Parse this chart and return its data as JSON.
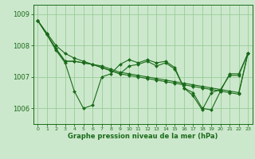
{
  "background_color": "#cce8cc",
  "grid_color": "#99cc99",
  "line_color": "#1a6b1a",
  "series": [
    {
      "x": [
        0,
        1,
        2,
        3,
        4,
        5,
        6,
        7,
        8,
        9,
        10,
        11,
        12,
        13,
        14,
        15,
        16,
        17,
        18,
        19,
        20,
        21,
        22,
        23
      ],
      "y": [
        1008.8,
        1008.35,
        1007.85,
        1007.45,
        1006.55,
        1006.0,
        1006.1,
        1007.0,
        1007.1,
        1007.4,
        1007.55,
        1007.45,
        1007.55,
        1007.45,
        1007.5,
        1007.3,
        1006.65,
        1006.5,
        1006.0,
        1005.95,
        1006.55,
        1007.1,
        1007.1,
        1007.75
      ]
    },
    {
      "x": [
        0,
        1,
        2,
        3,
        4,
        5,
        6,
        7,
        8,
        9,
        10,
        11,
        12,
        13,
        14,
        15,
        16,
        17,
        18,
        19,
        20,
        21,
        22,
        23
      ],
      "y": [
        1008.8,
        1008.4,
        1008.0,
        1007.75,
        1007.6,
        1007.5,
        1007.4,
        1007.35,
        1007.25,
        1007.15,
        1007.1,
        1007.05,
        1007.0,
        1006.95,
        1006.9,
        1006.85,
        1006.8,
        1006.75,
        1006.7,
        1006.65,
        1006.6,
        1006.55,
        1006.5,
        1007.75
      ]
    },
    {
      "x": [
        0,
        1,
        2,
        3,
        4,
        5,
        6,
        7,
        8,
        9,
        10,
        11,
        12,
        13,
        14,
        15,
        16,
        17,
        18,
        19,
        20,
        21,
        22,
        23
      ],
      "y": [
        1008.8,
        1008.35,
        1007.9,
        1007.5,
        1007.5,
        1007.45,
        1007.4,
        1007.3,
        1007.2,
        1007.1,
        1007.35,
        1007.4,
        1007.5,
        1007.35,
        1007.45,
        1007.25,
        1006.65,
        1006.4,
        1005.95,
        1006.5,
        1006.6,
        1007.05,
        1007.05,
        1007.75
      ]
    },
    {
      "x": [
        0,
        1,
        2,
        3,
        4,
        5,
        6,
        7,
        8,
        9,
        10,
        11,
        12,
        13,
        14,
        15,
        16,
        17,
        18,
        19,
        20,
        21,
        22,
        23
      ],
      "y": [
        1008.8,
        1008.35,
        1007.9,
        1007.5,
        1007.5,
        1007.45,
        1007.4,
        1007.3,
        1007.2,
        1007.1,
        1007.05,
        1007.0,
        1006.95,
        1006.9,
        1006.85,
        1006.8,
        1006.75,
        1006.7,
        1006.65,
        1006.6,
        1006.55,
        1006.5,
        1006.45,
        1007.75
      ]
    }
  ],
  "yticks": [
    1006,
    1007,
    1008,
    1009
  ],
  "xtick_labels": [
    "0",
    "1",
    "2",
    "3",
    "4",
    "5",
    "6",
    "7",
    "8",
    "9",
    "10",
    "11",
    "12",
    "13",
    "14",
    "15",
    "16",
    "17",
    "18",
    "19",
    "20",
    "21",
    "22",
    "23"
  ],
  "xlim": [
    -0.5,
    23.5
  ],
  "ylim": [
    1005.5,
    1009.3
  ],
  "xlabel": "Graphe pression niveau de la mer (hPa)",
  "marker": "D",
  "markersize": 2.0,
  "linewidth": 0.8
}
